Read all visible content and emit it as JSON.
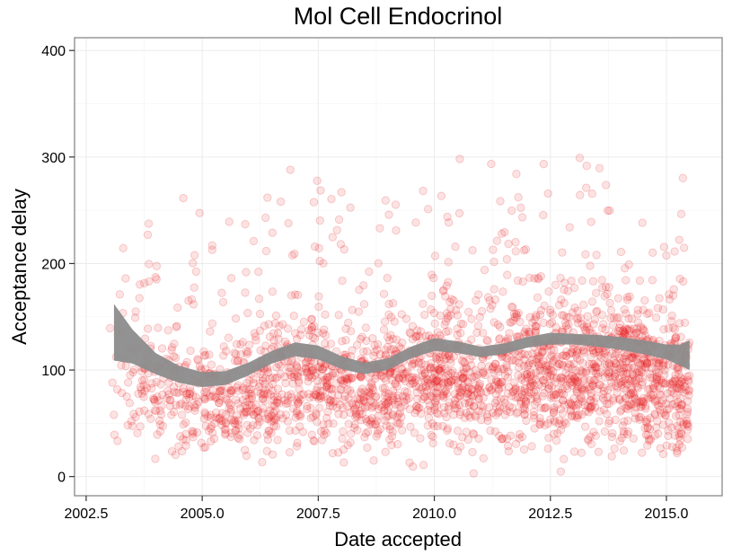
{
  "chart_data": {
    "type": "scatter",
    "title": "Mol Cell Endocrinol",
    "xlabel": "Date accepted",
    "ylabel": "Acceptance delay",
    "xlim": [
      2002.25,
      2016.2
    ],
    "ylim": [
      -18,
      412
    ],
    "x_ticks": [
      2002.5,
      2005.0,
      2007.5,
      2010.0,
      2012.5,
      2015.0
    ],
    "x_tick_labels": [
      "2002.5",
      "2005.0",
      "2007.5",
      "2010.0",
      "2012.5",
      "2015.0"
    ],
    "y_ticks": [
      0,
      100,
      200,
      300,
      400
    ],
    "y_tick_labels": [
      "0",
      "100",
      "200",
      "300",
      "400"
    ],
    "grid": true,
    "point_color": "#e8161b",
    "band_color": "#8c8c8c",
    "points": {
      "x_range": [
        2003.0,
        2015.5
      ],
      "y_range": [
        0,
        400
      ],
      "note_count": 2600
    },
    "smooth_band": [
      {
        "x": 2003.1,
        "lower": 109,
        "upper": 162
      },
      {
        "x": 2003.5,
        "lower": 106,
        "upper": 138
      },
      {
        "x": 2004.0,
        "lower": 96,
        "upper": 116
      },
      {
        "x": 2004.5,
        "lower": 88,
        "upper": 104
      },
      {
        "x": 2005.0,
        "lower": 84,
        "upper": 98
      },
      {
        "x": 2005.5,
        "lower": 86,
        "upper": 99
      },
      {
        "x": 2006.0,
        "lower": 95,
        "upper": 107
      },
      {
        "x": 2006.5,
        "lower": 106,
        "upper": 118
      },
      {
        "x": 2007.0,
        "lower": 113,
        "upper": 126
      },
      {
        "x": 2007.5,
        "lower": 110,
        "upper": 123
      },
      {
        "x": 2008.0,
        "lower": 101,
        "upper": 113
      },
      {
        "x": 2008.5,
        "lower": 96,
        "upper": 107
      },
      {
        "x": 2009.0,
        "lower": 100,
        "upper": 111
      },
      {
        "x": 2009.5,
        "lower": 111,
        "upper": 122
      },
      {
        "x": 2010.0,
        "lower": 118,
        "upper": 130
      },
      {
        "x": 2010.5,
        "lower": 116,
        "upper": 127
      },
      {
        "x": 2011.0,
        "lower": 112,
        "upper": 122
      },
      {
        "x": 2011.5,
        "lower": 115,
        "upper": 125
      },
      {
        "x": 2012.0,
        "lower": 121,
        "upper": 131
      },
      {
        "x": 2012.5,
        "lower": 124,
        "upper": 135
      },
      {
        "x": 2013.0,
        "lower": 124,
        "upper": 134
      },
      {
        "x": 2013.5,
        "lower": 122,
        "upper": 133
      },
      {
        "x": 2014.0,
        "lower": 119,
        "upper": 131
      },
      {
        "x": 2014.5,
        "lower": 115,
        "upper": 128
      },
      {
        "x": 2015.0,
        "lower": 110,
        "upper": 124
      },
      {
        "x": 2015.3,
        "lower": 104,
        "upper": 124
      },
      {
        "x": 2015.5,
        "lower": 100,
        "upper": 128
      }
    ]
  }
}
